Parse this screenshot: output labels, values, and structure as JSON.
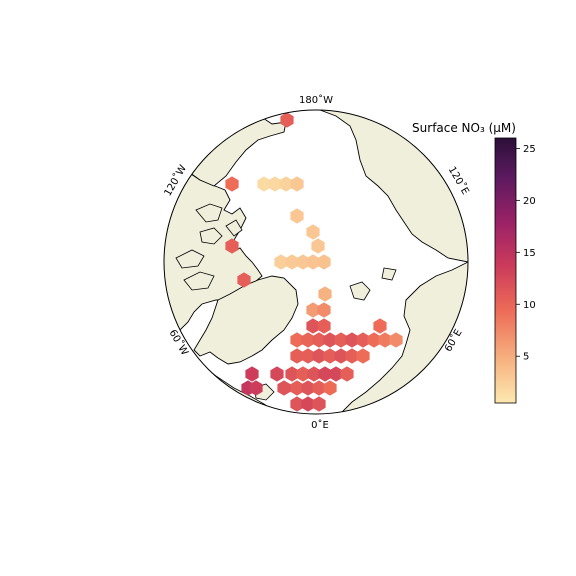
{
  "colorbar": {
    "title": "Surface NO₃ (μM)",
    "ticks": [
      5,
      10,
      15,
      20,
      25
    ],
    "range": [
      0.5,
      26
    ],
    "colors": [
      "#fde8b0",
      "#f6b07f",
      "#ed6b57",
      "#cb3a5b",
      "#9b2267",
      "#5c1a5f",
      "#2c0f39"
    ]
  },
  "longitude_labels": {
    "top": "180˚W",
    "bottom": "0˚E",
    "upper_left": "120˚W",
    "upper_right": "120˚E",
    "lower_left": "60˚W",
    "lower_right": "60˚E"
  },
  "colors": {
    "land": "#efefdb",
    "ocean": "#ffffff",
    "coastline": "#000000"
  },
  "chart_data": {
    "type": "heatmap",
    "variable": "Surface NO₃ (μM)",
    "projection": "north-polar-stereographic",
    "hex_values": [
      {
        "col": 0,
        "row": 0,
        "v": 1.5
      },
      {
        "col": 1,
        "row": 0,
        "v": 1.5
      },
      {
        "col": 2,
        "row": 0,
        "v": 2
      },
      {
        "col": 3,
        "row": 0,
        "v": 3
      }
    ]
  }
}
